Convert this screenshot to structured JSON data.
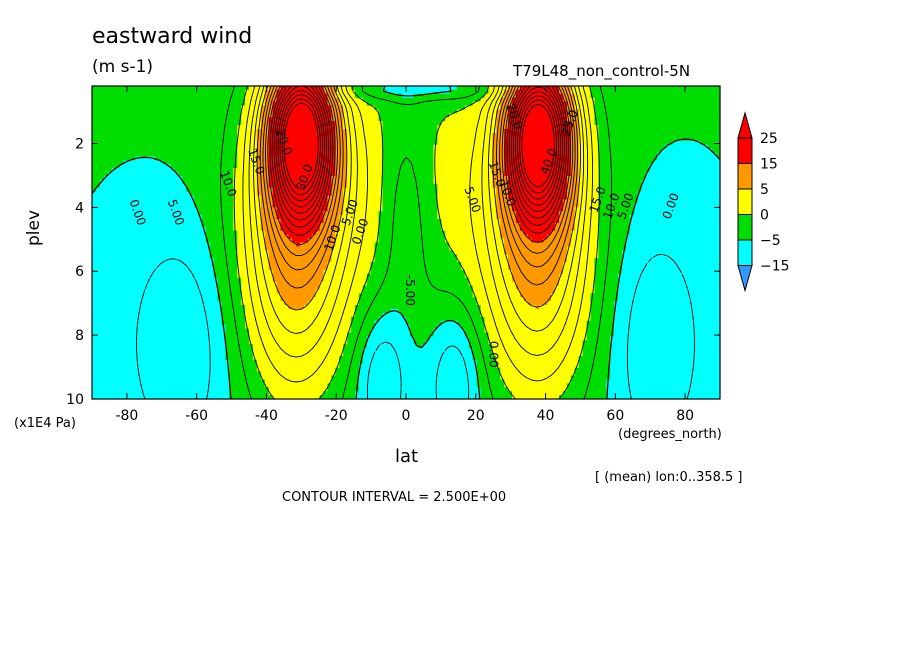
{
  "chart_data": {
    "type": "heatmap",
    "title": "eastward wind",
    "units": "(m s-1)",
    "experiment": "T79L48_non_control-5N",
    "xlabel": "lat",
    "xunit": "(degrees_north)",
    "ylabel": "plev",
    "yunit": "(x1E4 Pa)",
    "xlim": [
      -90,
      90
    ],
    "ylim": [
      10,
      0.2
    ],
    "xticks": [
      "-80",
      "-60",
      "-40",
      "-20",
      "0",
      "20",
      "40",
      "60",
      "80"
    ],
    "xtick_values": [
      -80,
      -60,
      -40,
      -20,
      0,
      20,
      40,
      60,
      80
    ],
    "yticks": [
      "2",
      "4",
      "6",
      "8",
      "10"
    ],
    "ytick_values": [
      2,
      4,
      6,
      8,
      10
    ],
    "mean_note": "[ (mean) lon:0..358.5 ]",
    "contour_interval": "CONTOUR INTERVAL = 2.500E+00",
    "colorbar": {
      "labels": [
        "25",
        "15",
        "5",
        "0",
        "−5",
        "−15"
      ],
      "colors": [
        "#ff0000",
        "#ff9900",
        "#ffff00",
        "#00dd00",
        "#00ffff",
        "#3399ff"
      ]
    },
    "features": [
      {
        "name": "southern-jet",
        "lat": -30,
        "plev": 1.8,
        "peak": 45
      },
      {
        "name": "northern-jet",
        "lat": 38,
        "plev": 1.8,
        "peak": 45
      },
      {
        "name": "equatorial-easterly-west",
        "lat": -7,
        "plev": 9.2,
        "min": -7.5
      },
      {
        "name": "equatorial-easterly-east",
        "lat": 14,
        "plev": 9.2,
        "min": -7.5
      },
      {
        "name": "southern-polar-easterly",
        "lat": -65,
        "plev": 8.0,
        "min": -5
      },
      {
        "name": "northern-polar-easterly",
        "lat": 72,
        "plev": 8.0,
        "min": -5
      }
    ],
    "contour_labels": [
      "0.00",
      "5.00",
      "10.0",
      "15.0",
      "20.0",
      "25.0",
      "30.0",
      "40.0",
      "-5.00"
    ]
  }
}
